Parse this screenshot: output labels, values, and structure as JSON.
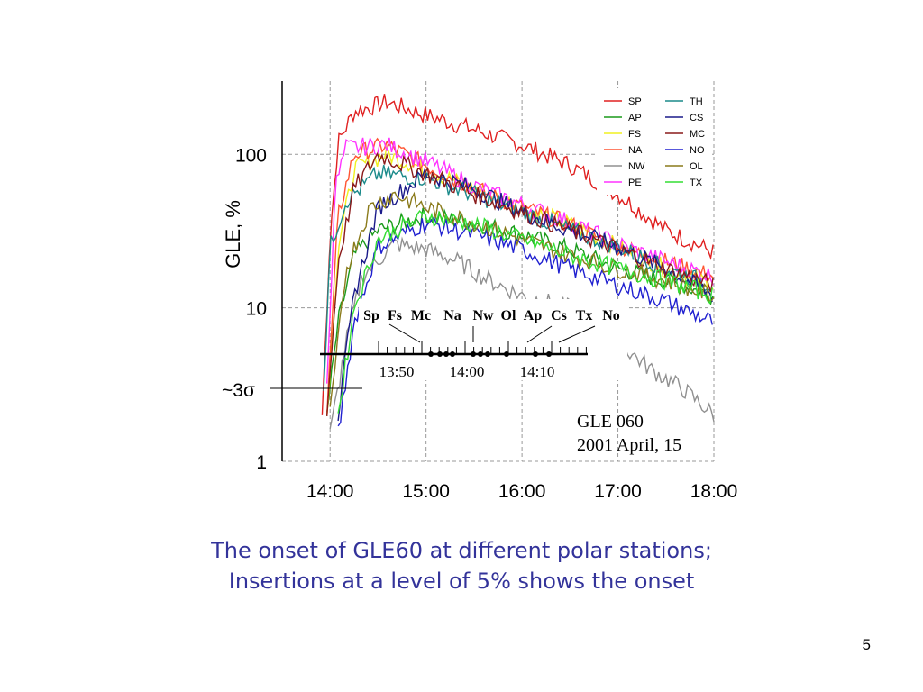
{
  "slide": {
    "caption_line1": "The onset of GLE60 at different polar stations;",
    "caption_line2": "Insertions at a level of 5% shows the onset",
    "page_number": "5"
  },
  "chart_data": {
    "type": "line",
    "title": "",
    "ylabel": "GLE, %",
    "xlabel": "",
    "y_scale": "log",
    "ylim": [
      1,
      300
    ],
    "xlim": [
      "13:30",
      "18:00"
    ],
    "x_ticks": [
      "14:00",
      "15:00",
      "16:00",
      "17:00",
      "18:00"
    ],
    "y_ticks": [
      "1",
      "10",
      "100"
    ],
    "sigma_label": "~3σ",
    "sigma_level": 3,
    "grid": true,
    "legend_position": "top-right",
    "annotation": [
      "GLE 060",
      "2001 April, 15"
    ],
    "inset": {
      "station_labels": [
        "Sp",
        "Fs",
        "Mc",
        "Na",
        "Nw",
        "Ol",
        "Ap",
        "Cs",
        "Tx",
        "No"
      ],
      "tick_labels": [
        "13:50",
        "14:00",
        "14:10"
      ],
      "level": "5%"
    },
    "series": [
      {
        "name": "SP",
        "color": "#e02020",
        "x": [
          "13:55",
          "14:00",
          "14:05",
          "14:15",
          "14:30",
          "14:35",
          "15:00",
          "15:30",
          "16:00",
          "16:30",
          "17:00",
          "17:30",
          "18:00"
        ],
        "values": [
          2,
          30,
          120,
          190,
          210,
          220,
          180,
          145,
          115,
          85,
          55,
          32,
          23
        ]
      },
      {
        "name": "AP",
        "color": "#1a9a1a",
        "x": [
          "13:58",
          "14:05",
          "14:15",
          "14:30",
          "15:00",
          "15:30",
          "16:00",
          "16:30",
          "17:00",
          "17:30",
          "18:00"
        ],
        "values": [
          2,
          8,
          22,
          32,
          40,
          36,
          30,
          24,
          18,
          15,
          12
        ]
      },
      {
        "name": "FS",
        "color": "#f0f020",
        "x": [
          "13:58",
          "14:05",
          "14:15",
          "14:35",
          "15:00",
          "15:30",
          "16:00",
          "16:30",
          "17:00",
          "17:30",
          "18:00"
        ],
        "values": [
          2,
          25,
          80,
          100,
          80,
          60,
          45,
          35,
          25,
          18,
          14
        ]
      },
      {
        "name": "NA",
        "color": "#ff5533",
        "x": [
          "13:58",
          "14:05",
          "14:15",
          "14:35",
          "15:00",
          "15:30",
          "16:00",
          "16:30",
          "17:00",
          "17:30",
          "18:00"
        ],
        "values": [
          2,
          40,
          100,
          115,
          85,
          60,
          45,
          35,
          25,
          20,
          16
        ]
      },
      {
        "name": "NW",
        "color": "#909090",
        "x": [
          "14:00",
          "14:10",
          "14:20",
          "14:40",
          "15:00",
          "15:20",
          "15:40",
          "16:00",
          "16:30",
          "17:00",
          "17:20",
          "17:40",
          "18:00"
        ],
        "values": [
          1.5,
          6,
          16,
          26,
          24,
          20,
          15,
          12,
          10,
          6,
          4,
          3,
          2
        ]
      },
      {
        "name": "PE",
        "color": "#ff33ff",
        "x": [
          "13:58",
          "14:03",
          "14:10",
          "14:35",
          "15:00",
          "15:30",
          "16:00",
          "16:30",
          "17:00",
          "17:30",
          "18:00"
        ],
        "values": [
          3,
          60,
          110,
          115,
          90,
          62,
          47,
          36,
          26,
          20,
          16
        ]
      },
      {
        "name": "TH",
        "color": "#1a8a8a",
        "x": [
          "13:56",
          "14:00",
          "14:10",
          "14:30",
          "15:00",
          "15:30",
          "16:00",
          "16:30",
          "17:00",
          "17:30",
          "18:00"
        ],
        "values": [
          3,
          25,
          50,
          75,
          70,
          55,
          42,
          32,
          25,
          18,
          14
        ]
      },
      {
        "name": "CS",
        "color": "#1a1a8a",
        "x": [
          "14:05",
          "14:15",
          "14:30",
          "15:00",
          "15:30",
          "16:00",
          "16:30",
          "17:00",
          "17:30",
          "18:00"
        ],
        "values": [
          2,
          12,
          45,
          75,
          60,
          42,
          32,
          25,
          18,
          12
        ]
      },
      {
        "name": "MC",
        "color": "#8a1a1a",
        "x": [
          "13:58",
          "14:05",
          "14:15",
          "14:30",
          "15:00",
          "15:30",
          "16:00",
          "16:30",
          "17:00",
          "17:30",
          "18:00"
        ],
        "values": [
          2,
          20,
          60,
          100,
          75,
          55,
          42,
          32,
          24,
          18,
          14
        ]
      },
      {
        "name": "NO",
        "color": "#2020d0",
        "x": [
          "14:05",
          "14:15",
          "14:30",
          "15:00",
          "15:30",
          "16:00",
          "16:30",
          "17:00",
          "17:30",
          "18:00"
        ],
        "values": [
          1.5,
          8,
          25,
          36,
          30,
          24,
          18,
          14,
          11,
          8
        ]
      },
      {
        "name": "OL",
        "color": "#8a7a1a",
        "x": [
          "14:00",
          "14:10",
          "14:25",
          "14:40",
          "15:00",
          "15:30",
          "16:00",
          "16:30",
          "17:00",
          "17:30",
          "18:00"
        ],
        "values": [
          2,
          18,
          45,
          55,
          45,
          36,
          28,
          22,
          18,
          15,
          12
        ]
      },
      {
        "name": "TX",
        "color": "#33dd33",
        "x": [
          "14:05",
          "14:15",
          "14:30",
          "15:00",
          "15:30",
          "16:00",
          "16:30",
          "17:00",
          "17:30",
          "18:00"
        ],
        "values": [
          2,
          10,
          28,
          40,
          35,
          28,
          22,
          18,
          15,
          12
        ]
      }
    ]
  }
}
